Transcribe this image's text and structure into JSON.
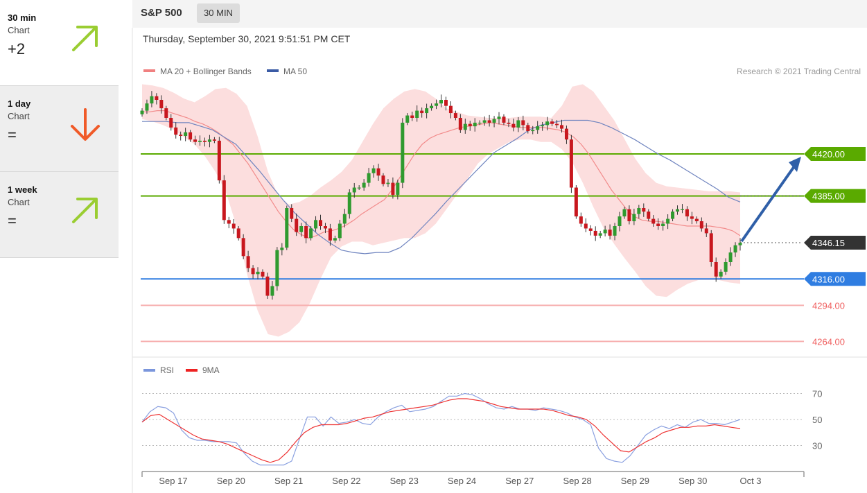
{
  "sidebar": {
    "items": [
      {
        "name": "30 min",
        "sub": "Chart",
        "value": "+2",
        "direction": "up",
        "color": "#9acd32"
      },
      {
        "name": "1 day",
        "sub": "Chart",
        "value": "=",
        "direction": "down",
        "color": "#f05a28"
      },
      {
        "name": "1 week",
        "sub": "Chart",
        "value": "=",
        "direction": "up",
        "color": "#9acd32"
      }
    ]
  },
  "header": {
    "symbol": "S&P 500",
    "timeframe": "30 MIN"
  },
  "datetime": "Thursday, September 30, 2021 9:51:51 PM CET",
  "copyright": "Research © 2021 Trading Central",
  "chart_data": [
    {
      "type": "line",
      "legend": [
        {
          "name": "MA 20 + Bollinger Bands",
          "color": "#f08080"
        },
        {
          "name": "MA 50",
          "color": "#3b5ba5"
        }
      ],
      "x_ticks": [
        "Sep 17",
        "Sep 20",
        "Sep 21",
        "Sep 22",
        "Sep 23",
        "Sep 24",
        "Sep 27",
        "Sep 28",
        "Sep 29",
        "Sep 30",
        "Oct 3"
      ],
      "ylim": [
        4255,
        4480
      ],
      "levels": [
        {
          "value": 4420.0,
          "label": "4420.00",
          "color": "#5aaa00",
          "kind": "resistance"
        },
        {
          "value": 4385.0,
          "label": "4385.00",
          "color": "#5aaa00",
          "kind": "resistance"
        },
        {
          "value": 4346.15,
          "label": "4346.15",
          "color": "#333333",
          "kind": "last"
        },
        {
          "value": 4316.0,
          "label": "4316.00",
          "color": "#2f7de1",
          "kind": "pivot"
        },
        {
          "value": 4294.0,
          "label": "4294.00",
          "color": "#f06060",
          "kind": "support"
        },
        {
          "value": 4264.0,
          "label": "4264.00",
          "color": "#f06060",
          "kind": "support"
        }
      ],
      "close": [
        4456,
        4462,
        4468,
        4465,
        4458,
        4450,
        4442,
        4436,
        4435,
        4438,
        4432,
        4430,
        4431,
        4430,
        4432,
        4431,
        4398,
        4365,
        4362,
        4358,
        4350,
        4335,
        4325,
        4320,
        4322,
        4318,
        4302,
        4310,
        4340,
        4342,
        4375,
        4366,
        4355,
        4360,
        4350,
        4358,
        4365,
        4360,
        4358,
        4348,
        4350,
        4362,
        4370,
        4388,
        4392,
        4392,
        4396,
        4404,
        4408,
        4402,
        4395,
        4396,
        4386,
        4396,
        4446,
        4452,
        4450,
        4456,
        4454,
        4458,
        4460,
        4462,
        4465,
        4460,
        4454,
        4450,
        4440,
        4445,
        4443,
        4446,
        4446,
        4448,
        4446,
        4449,
        4451,
        4446,
        4445,
        4442,
        4448,
        4444,
        4439,
        4440,
        4443,
        4444,
        4447,
        4445,
        4444,
        4441,
        4432,
        4392,
        4368,
        4362,
        4358,
        4356,
        4352,
        4354,
        4357,
        4352,
        4360,
        4368,
        4374,
        4364,
        4370,
        4375,
        4372,
        4366,
        4362,
        4360,
        4362,
        4366,
        4372,
        4374,
        4374,
        4368,
        4366,
        4364,
        4358,
        4354,
        4330,
        4318,
        4322,
        4330,
        4338,
        4344,
        4346.15
      ],
      "ma20": [
        4455,
        4455,
        4456,
        4456,
        4454,
        4452,
        4450,
        4447,
        4445,
        4442,
        4438,
        4433,
        4428,
        4420,
        4412,
        4402,
        4392,
        4382,
        4372,
        4364,
        4357,
        4353,
        4350,
        4352,
        4355,
        4356,
        4358,
        4361,
        4365,
        4370,
        4374,
        4378,
        4382,
        4390,
        4400,
        4410,
        4420,
        4428,
        4433,
        4436,
        4438,
        4440,
        4442,
        4443,
        4444,
        4445,
        4446,
        4445,
        4444,
        4443,
        4442,
        4442,
        4442,
        4442,
        4441,
        4440,
        4438,
        4434,
        4428,
        4420,
        4410,
        4400,
        4390,
        4382,
        4374,
        4368,
        4365,
        4364,
        4364,
        4363,
        4362,
        4361,
        4360,
        4360,
        4360,
        4360,
        4359,
        4358,
        4356,
        4352
      ],
      "ma50": [
        4447,
        4447,
        4447,
        4446,
        4446,
        4443,
        4440,
        4434,
        4428,
        4417,
        4406,
        4394,
        4382,
        4371,
        4362,
        4353,
        4346,
        4340,
        4338,
        4337,
        4338,
        4338,
        4342,
        4350,
        4360,
        4370,
        4381,
        4391,
        4401,
        4411,
        4421,
        4427,
        4433,
        4440,
        4444,
        4446,
        4448,
        4448,
        4448,
        4446,
        4442,
        4437,
        4432,
        4426,
        4420,
        4415,
        4409,
        4403,
        4397,
        4391,
        4384,
        4380
      ],
      "bb_upper": [
        4478,
        4477,
        4475,
        4471,
        4466,
        4463,
        4468,
        4474,
        4475,
        4470,
        4460,
        4435,
        4405,
        4385,
        4378,
        4380,
        4385,
        4392,
        4398,
        4405,
        4415,
        4430,
        4445,
        4458,
        4466,
        4472,
        4474,
        4472,
        4466,
        4458,
        4455,
        4452,
        4451,
        4450,
        4450,
        4450,
        4451,
        4451,
        4451,
        4450,
        4460,
        4476,
        4478,
        4472,
        4460,
        4448,
        4432,
        4416,
        4404,
        4396,
        4393,
        4392,
        4391,
        4390,
        4389,
        4389,
        4389,
        4388
      ],
      "bb_lower": [
        4449,
        4447,
        4444,
        4440,
        4434,
        4428,
        4418,
        4405,
        4388,
        4360,
        4320,
        4290,
        4270,
        4268,
        4272,
        4280,
        4296,
        4316,
        4334,
        4343,
        4347,
        4347,
        4344,
        4346,
        4348,
        4350,
        4350,
        4354,
        4362,
        4374,
        4386,
        4399,
        4412,
        4420,
        4425,
        4430,
        4432,
        4432,
        4430,
        4430,
        4424,
        4413,
        4396,
        4376,
        4358,
        4345,
        4333,
        4322,
        4310,
        4302,
        4301,
        4307,
        4312,
        4315,
        4315,
        4315,
        4313,
        4312
      ]
    },
    {
      "type": "line",
      "legend": [
        {
          "name": "RSI",
          "color": "#7b96dc"
        },
        {
          "name": "9MA",
          "color": "#ee2222"
        }
      ],
      "y_ticks": [
        "70",
        "50",
        "30"
      ],
      "ylim": [
        10,
        90
      ],
      "series": [
        {
          "name": "RSI",
          "values": [
            48,
            56,
            60,
            59,
            55,
            42,
            36,
            34,
            34,
            33,
            33,
            33,
            32,
            24,
            18,
            15,
            15,
            15,
            15,
            18,
            35,
            52,
            52,
            45,
            52,
            47,
            48,
            50,
            47,
            46,
            52,
            56,
            59,
            61,
            56,
            57,
            58,
            60,
            64,
            68,
            68,
            70,
            69,
            66,
            62,
            59,
            58,
            60,
            58,
            58,
            57,
            59,
            58,
            57,
            55,
            52,
            50,
            46,
            28,
            20,
            18,
            17,
            22,
            30,
            38,
            42,
            45,
            43,
            46,
            44,
            48,
            50,
            47,
            47,
            46,
            48,
            50
          ]
        },
        {
          "name": "9MA",
          "values": [
            48,
            53,
            54,
            50,
            46,
            42,
            38,
            35,
            34,
            33,
            31,
            28,
            25,
            22,
            19,
            17,
            19,
            25,
            33,
            40,
            44,
            46,
            46,
            46,
            47,
            49,
            51,
            52,
            54,
            56,
            57,
            58,
            59,
            60,
            61,
            63,
            65,
            66,
            66,
            65,
            64,
            62,
            60,
            59,
            58,
            58,
            58,
            58,
            57,
            55,
            53,
            52,
            50,
            45,
            38,
            32,
            26,
            25,
            29,
            33,
            36,
            40,
            42,
            44,
            44,
            45,
            45,
            46,
            45,
            44,
            43
          ]
        }
      ]
    }
  ]
}
